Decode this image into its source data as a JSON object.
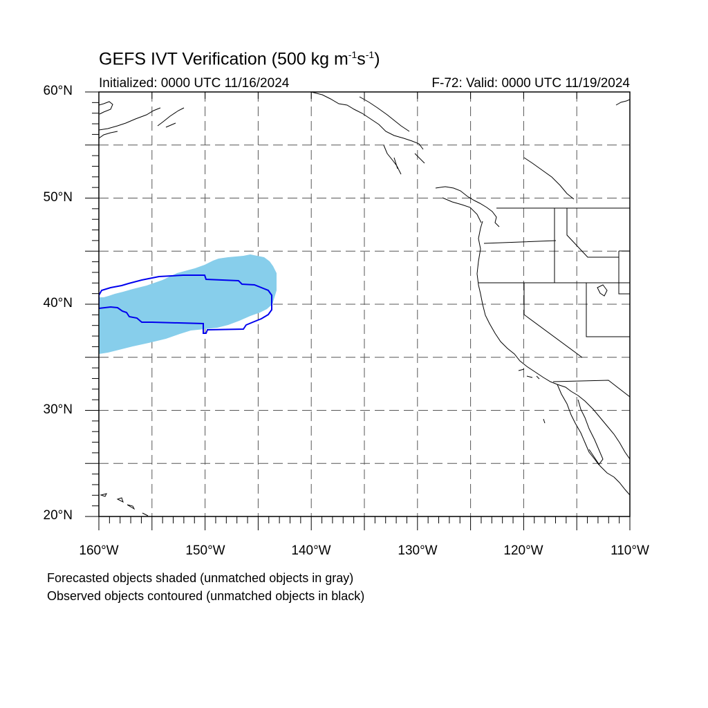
{
  "title": {
    "main": "GEFS IVT Verification (500 kg m",
    "exp1": "-1",
    "mid": "s",
    "exp2": "-1",
    "tail": ")"
  },
  "subtitle_left": "Initialized: 0000 UTC 11/16/2024",
  "subtitle_right": "F-72: Valid: 0000 UTC 11/19/2024",
  "lat_labels": [
    "60°N",
    "50°N",
    "40°N",
    "30°N",
    "20°N"
  ],
  "lon_labels": [
    "160°W",
    "150°W",
    "140°W",
    "130°W",
    "120°W",
    "110°W"
  ],
  "legend_lines": [
    "Forecasted objects shaded (unmatched objects in gray)",
    "Observed objects contoured (unmatched objects in black)"
  ],
  "colors": {
    "forecast_fill": "#87ceeb",
    "observed_contour": "#0000ee",
    "coastline": "#000000",
    "grid": "#555555"
  },
  "map": {
    "lon_range": [
      -160,
      -110
    ],
    "lat_range": [
      20,
      60
    ],
    "grid_step_deg": 5,
    "label_step_deg": 10,
    "projection": "cylindrical-equidistant"
  },
  "objects": {
    "forecast": {
      "matched": true,
      "label": "forecast object"
    },
    "observed": {
      "matched": true,
      "label": "observed object"
    }
  }
}
